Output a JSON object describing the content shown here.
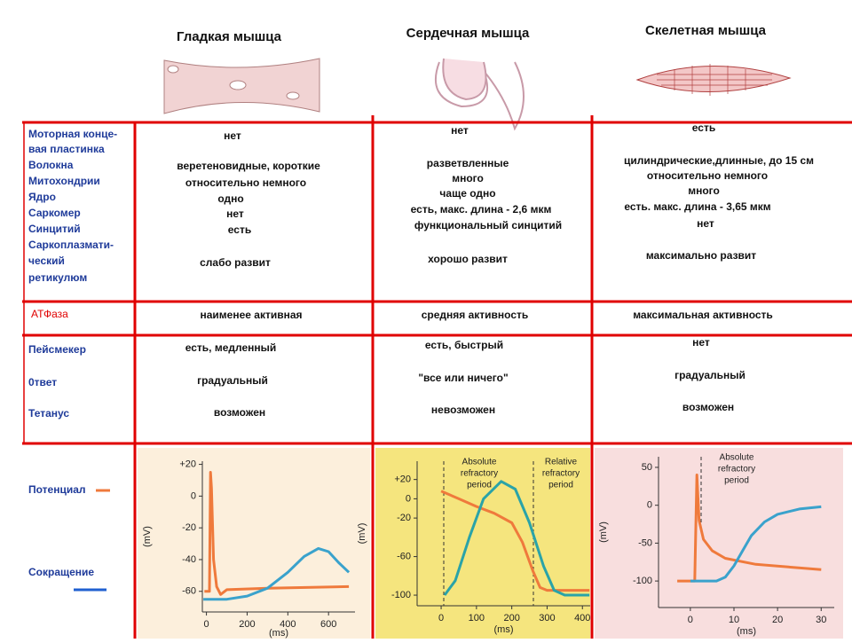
{
  "columns": [
    "Гладкая мышца",
    "Сердечная мышца",
    "Скелетная мышца"
  ],
  "row_labels": [
    "Моторная конце-",
    "вая пластинка",
    "Волокна",
    "Митохондрии",
    "Ядро",
    "Саркомер",
    "Синцитий",
    "Саркоплазмати-",
    "ческий",
    "ретикулюм"
  ],
  "atp_label": "АТФаза",
  "function_labels": [
    "Пейсмекер",
    "0твет",
    "Тетанус"
  ],
  "cells": [
    [
      "нет",
      "веретеновидные, короткие",
      "относительно немного",
      "одно",
      "нет",
      "есть",
      "слабо развит"
    ],
    [
      "нет",
      "разветвленные",
      "много",
      "чаще одно",
      "есть, макс. длина - 2,6 мкм",
      "функциональный синцитий",
      "хорошо развит"
    ],
    [
      "есть",
      "цилиндрические,длинные, до 15 см",
      "относительно немного",
      "много",
      "есть. макс. длина - 3,65 мкм",
      "нет",
      "максимально развит"
    ]
  ],
  "atp": [
    "наименее активная",
    "средняя активность",
    "максимальная активность"
  ],
  "function": [
    [
      "есть, медленный",
      "градуальный",
      "возможен"
    ],
    [
      "есть, быстрый",
      "\"все или ничего\"",
      "невозможен"
    ],
    [
      "нет",
      "градуальный",
      "возможен"
    ]
  ],
  "legend": {
    "potential": "Потенциал",
    "contraction": "Сокращение"
  },
  "charts": [
    {
      "type": "line",
      "y_label": "(mV)",
      "x_label": "(ms)",
      "xlim": [
        -20,
        730
      ],
      "ylim": [
        -73,
        22
      ],
      "xticks": [
        0,
        200,
        400,
        600
      ],
      "yticks": [
        {
          "value": 20,
          "label": "+20"
        },
        0,
        -20,
        -40,
        -60
      ],
      "annotations": [],
      "series": [
        {
          "color": "#ef7a3c",
          "x": [
            -10,
            15,
            20,
            25,
            35,
            50,
            70,
            100,
            300,
            700
          ],
          "values": [
            -60,
            -60,
            15,
            5,
            -40,
            -57,
            -62,
            -59,
            -58,
            -57
          ]
        },
        {
          "color": "#3aa2cc",
          "x": [
            -15,
            100,
            200,
            300,
            400,
            480,
            550,
            600,
            650,
            700
          ],
          "values": [
            -65,
            -65,
            -63,
            -58,
            -48,
            -38,
            -33,
            -35,
            -42,
            -48
          ]
        }
      ]
    },
    {
      "type": "line",
      "y_label": "(mV)",
      "x_label": "(ms)",
      "xlim": [
        -68,
        422
      ],
      "ylim": [
        -111,
        39
      ],
      "xticks": [
        0,
        100,
        200,
        300,
        400
      ],
      "yticks": [
        {
          "value": 20,
          "label": "+20"
        },
        0,
        -20,
        -60,
        -100
      ],
      "annotations": [
        [
          "Absolute",
          "refractory",
          "period"
        ],
        [
          "Relative",
          "refractory",
          "period"
        ]
      ],
      "series": [
        {
          "color": "#ef7a3c",
          "x": [
            0,
            50,
            100,
            150,
            200,
            230,
            260,
            280,
            300,
            420
          ],
          "values": [
            8,
            0,
            -8,
            -15,
            -25,
            -45,
            -75,
            -92,
            -95,
            -95
          ]
        },
        {
          "color": "#2aa3a8",
          "x": [
            10,
            40,
            80,
            120,
            170,
            210,
            250,
            290,
            320,
            350,
            420
          ],
          "values": [
            -100,
            -85,
            -40,
            0,
            18,
            10,
            -25,
            -70,
            -95,
            -100,
            -100
          ]
        }
      ]
    },
    {
      "type": "line",
      "y_label": "(mV)",
      "x_label": "(ms)",
      "xlim": [
        -7.3,
        33
      ],
      "ylim": [
        -135,
        64
      ],
      "xticks": [
        0,
        10,
        20,
        30
      ],
      "yticks": [
        50,
        0,
        -50,
        -100
      ],
      "annotations": [
        [
          "Absolute",
          "refractory",
          "period"
        ]
      ],
      "series": [
        {
          "color": "#ef7a3c",
          "x": [
            -3,
            1,
            1.5,
            2,
            3,
            5,
            8,
            15,
            30
          ],
          "values": [
            -100,
            -100,
            40,
            -20,
            -45,
            -60,
            -70,
            -78,
            -85
          ]
        },
        {
          "color": "#3aa2cc",
          "x": [
            0,
            6,
            8,
            10,
            12,
            14,
            17,
            20,
            25,
            30
          ],
          "values": [
            -100,
            -100,
            -95,
            -80,
            -60,
            -40,
            -22,
            -12,
            -5,
            -2
          ]
        }
      ]
    }
  ]
}
